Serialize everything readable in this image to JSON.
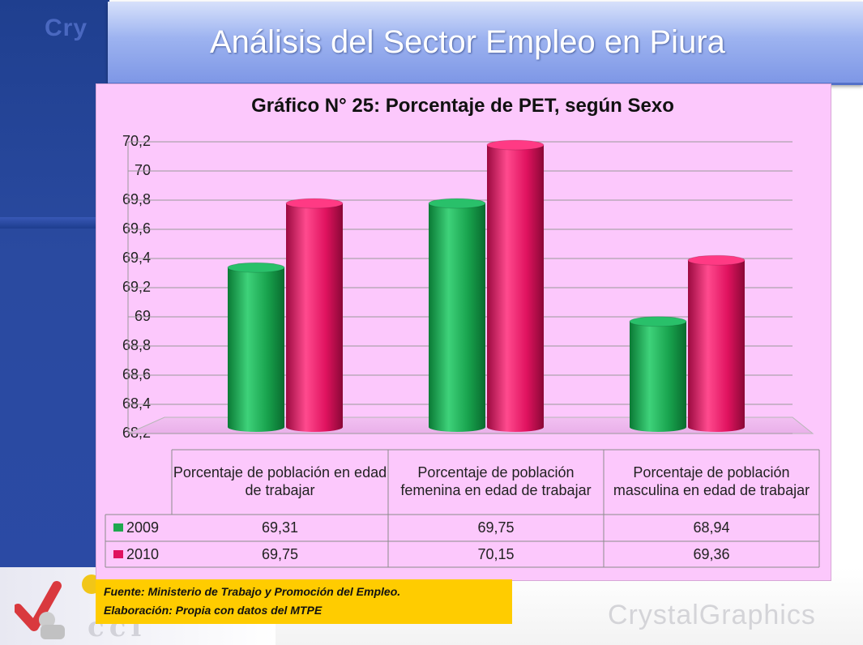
{
  "slide": {
    "title": "Análisis del Sector Empleo en Piura",
    "brand_text": "CrystalGraphics",
    "ghost_logo_text": "Cry"
  },
  "source_note": {
    "line1": "Fuente: Ministerio de Trabajo y Promoción del Empleo.",
    "line2": "Elaboración: Propia con datos del MTPE"
  },
  "chart_data": {
    "type": "bar",
    "title": "Gráfico N° 25: Porcentaje de PET, según Sexo",
    "categories": [
      "Porcentaje de población en edad de trabajar",
      "Porcentaje de población femenina en edad de trabajar",
      "Porcentaje de población masculina en edad de trabajar"
    ],
    "series": [
      {
        "name": "2009",
        "values": [
          69.31,
          69.75,
          68.94
        ],
        "color": "#1fa84f"
      },
      {
        "name": "2010",
        "values": [
          69.75,
          70.15,
          69.36
        ],
        "color": "#e0125f"
      }
    ],
    "data_table": {
      "rows": [
        {
          "label": "2009",
          "cells": [
            "69,31",
            "69,75",
            "68,94"
          ]
        },
        {
          "label": "2010",
          "cells": [
            "69,75",
            "70,15",
            "69,36"
          ]
        }
      ]
    },
    "yticks": [
      "70,2",
      "70",
      "69,8",
      "69,6",
      "69,4",
      "69,2",
      "69",
      "68,8",
      "68,6",
      "68,4",
      "68,2"
    ],
    "ylim": [
      68.2,
      70.2
    ],
    "grid": true,
    "legend": "data-table",
    "style": "3d-cylinder"
  }
}
